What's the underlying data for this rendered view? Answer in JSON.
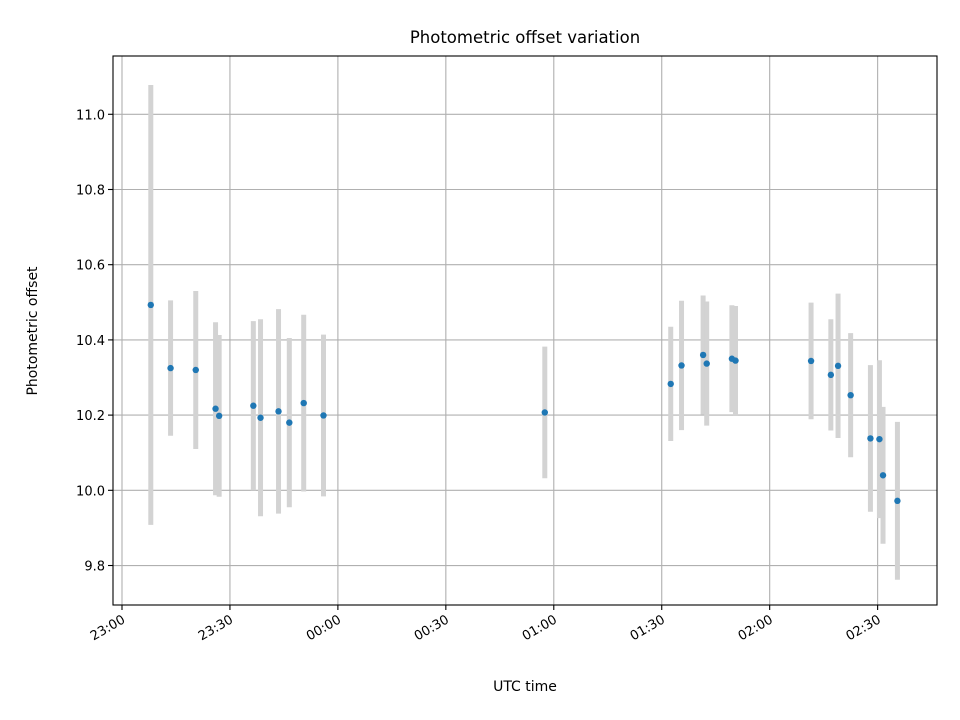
{
  "chart_data": {
    "type": "scatter",
    "title": "Photometric offset variation",
    "xlabel": "UTC time",
    "ylabel": "Photometric offset",
    "grid": true,
    "xlim": [
      -2.5,
      226.5
    ],
    "ylim": [
      9.695,
      11.155
    ],
    "x_unit": "minutes after 23:00 UTC",
    "x_ticks": [
      {
        "value": 0,
        "label": "23:00"
      },
      {
        "value": 30,
        "label": "23:30"
      },
      {
        "value": 60,
        "label": "00:00"
      },
      {
        "value": 90,
        "label": "00:30"
      },
      {
        "value": 120,
        "label": "01:00"
      },
      {
        "value": 150,
        "label": "01:30"
      },
      {
        "value": 180,
        "label": "02:00"
      },
      {
        "value": 210,
        "label": "02:30"
      }
    ],
    "y_ticks": [
      {
        "value": 9.8,
        "label": "9.8"
      },
      {
        "value": 10.0,
        "label": "10.0"
      },
      {
        "value": 10.2,
        "label": "10.2"
      },
      {
        "value": 10.4,
        "label": "10.4"
      },
      {
        "value": 10.6,
        "label": "10.6"
      },
      {
        "value": 10.8,
        "label": "10.8"
      },
      {
        "value": 11.0,
        "label": "11.0"
      }
    ],
    "colors": {
      "marker": "#1f77b4",
      "errorbar": "#d3d3d3",
      "grid": "#b0b0b0"
    },
    "points": [
      {
        "x": 8.0,
        "y": 10.493,
        "err": 0.585
      },
      {
        "x": 13.5,
        "y": 10.325,
        "err": 0.18
      },
      {
        "x": 20.5,
        "y": 10.32,
        "err": 0.21
      },
      {
        "x": 26.0,
        "y": 10.217,
        "err": 0.23
      },
      {
        "x": 27.0,
        "y": 10.198,
        "err": 0.215
      },
      {
        "x": 36.5,
        "y": 10.225,
        "err": 0.225
      },
      {
        "x": 38.5,
        "y": 10.193,
        "err": 0.262
      },
      {
        "x": 43.5,
        "y": 10.21,
        "err": 0.272
      },
      {
        "x": 46.5,
        "y": 10.18,
        "err": 0.225
      },
      {
        "x": 50.5,
        "y": 10.232,
        "err": 0.235
      },
      {
        "x": 56.0,
        "y": 10.199,
        "err": 0.215
      },
      {
        "x": 117.5,
        "y": 10.207,
        "err": 0.175
      },
      {
        "x": 152.5,
        "y": 10.283,
        "err": 0.152
      },
      {
        "x": 155.5,
        "y": 10.332,
        "err": 0.172
      },
      {
        "x": 161.5,
        "y": 10.36,
        "err": 0.158
      },
      {
        "x": 162.5,
        "y": 10.337,
        "err": 0.165
      },
      {
        "x": 169.5,
        "y": 10.35,
        "err": 0.142
      },
      {
        "x": 170.5,
        "y": 10.345,
        "err": 0.145
      },
      {
        "x": 191.5,
        "y": 10.344,
        "err": 0.155
      },
      {
        "x": 197.0,
        "y": 10.307,
        "err": 0.148
      },
      {
        "x": 199.0,
        "y": 10.331,
        "err": 0.192
      },
      {
        "x": 202.5,
        "y": 10.253,
        "err": 0.165
      },
      {
        "x": 208.0,
        "y": 10.138,
        "err": 0.195
      },
      {
        "x": 210.5,
        "y": 10.136,
        "err": 0.21
      },
      {
        "x": 211.5,
        "y": 10.04,
        "err": 0.182
      },
      {
        "x": 215.5,
        "y": 9.972,
        "err": 0.21
      }
    ]
  }
}
